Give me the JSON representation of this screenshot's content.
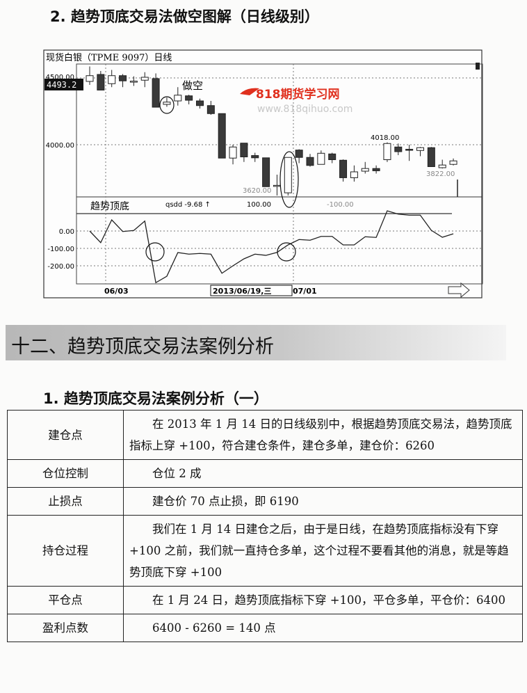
{
  "figure_title": "2. 趋势顶底交易法做空图解（日线级别）",
  "chart_header": "现货白银（TPME 9097）日线",
  "current_price_badge": "4493.2",
  "price_axis_labels": [
    "4500.00",
    "4000.00"
  ],
  "indicator_axis_labels": [
    "0.00",
    "-100.00",
    "-200.00"
  ],
  "indicator_name": "趋势顶底",
  "indicator_readout": "qsdd  -9.68 ↑",
  "indicator_level_high": "100.00",
  "indicator_level_low": "-100.00",
  "annotation_short": "做空",
  "price_labels": {
    "high": "4018.00",
    "low1": "3620.00",
    "low2": "3822.00"
  },
  "date_labels": [
    "06/03",
    "2013/06/19,三",
    "07/01"
  ],
  "watermark": {
    "name": "818期货学习网",
    "url": "www.818qihuo.com",
    "color": "#e0301e"
  },
  "section_title": "十二、趋势顶底交易法案例分析",
  "sub_title": "1. 趋势顶底交易法案例分析（一）",
  "table": [
    {
      "label": "建仓点",
      "value": "在 2013 年 1 月 14 日的日线级别中，根据趋势顶底交易法，趋势顶底指标上穿 +100，符合建仓条件，建仓多单，建仓价：6260",
      "indent": true
    },
    {
      "label": "仓位控制",
      "value": "仓位 2 成",
      "indent": true
    },
    {
      "label": "止损点",
      "value": "建仓价 70 点止损，即 6190",
      "indent": true
    },
    {
      "label": "持仓过程",
      "value": "我们在 1 月 14 日建仓之后，由于是日线，在趋势顶底指标没有下穿 +100 之前，我们就一直持仓多单，这个过程不要看其他的消息，就是等趋势顶底下穿 +100",
      "indent": true
    },
    {
      "label": "平仓点",
      "value": "在 1 月 24 日，趋势顶底指标下穿 +100，平仓多单，平仓价：6400",
      "indent": true
    },
    {
      "label": "盈利点数",
      "value": "6400 - 6260 = 140 点",
      "indent": true
    }
  ],
  "chart_data": {
    "type": "candlestick",
    "ylim": [
      3609,
      4600
    ],
    "ohlc": [
      [
        4474,
        4586,
        4448,
        4517
      ],
      [
        4526,
        4552,
        4409,
        4409
      ],
      [
        4457,
        4560,
        4431,
        4517
      ],
      [
        4517,
        4529,
        4431,
        4478
      ],
      [
        4474,
        4512,
        4440,
        4476
      ],
      [
        4483,
        4543,
        4431,
        4505
      ],
      [
        4495,
        4534,
        4281,
        4281
      ],
      [
        4302,
        4353,
        4284,
        4319
      ],
      [
        4328,
        4431,
        4293,
        4371
      ],
      [
        4366,
        4374,
        4302,
        4333
      ],
      [
        4328,
        4345,
        4271,
        4293
      ],
      [
        4293,
        4328,
        4224,
        4233
      ],
      [
        4233,
        4233,
        3900,
        3900
      ],
      [
        3900,
        4000,
        3853,
        3983
      ],
      [
        4012,
        4012,
        3871,
        3909
      ],
      [
        3919,
        3940,
        3871,
        3902
      ],
      [
        3902,
        3902,
        3686,
        3686
      ],
      [
        3693,
        3776,
        3620,
        3696
      ],
      [
        3640,
        3905,
        3620,
        3905
      ],
      [
        3960,
        3966,
        3862,
        3905
      ],
      [
        3905,
        3931,
        3836,
        3845
      ],
      [
        3853,
        3957,
        3853,
        3936
      ],
      [
        3931,
        3940,
        3862,
        3888
      ],
      [
        3884,
        3890,
        3724,
        3753
      ],
      [
        3753,
        3845,
        3724,
        3797
      ],
      [
        3802,
        3871,
        3784,
        3822
      ],
      [
        3822,
        3845,
        3784,
        3805
      ],
      [
        3888,
        4018,
        3871,
        4009
      ],
      [
        3983,
        4009,
        3922,
        3948
      ],
      [
        3966,
        4000,
        3879,
        3960
      ],
      [
        3957,
        3983,
        3914,
        3978
      ],
      [
        3978,
        3983,
        3836,
        3836
      ],
      [
        3828,
        3888,
        3822,
        3848
      ],
      [
        3853,
        3897,
        3845,
        3879
      ]
    ],
    "indicator": {
      "name": "趋势顶底",
      "levels": [
        100,
        -100
      ],
      "ylim": [
        -300,
        110
      ],
      "values": [
        0,
        -67,
        64,
        -3,
        3,
        57,
        -297,
        -260,
        -124,
        -133,
        -129,
        -133,
        -243,
        -200,
        -160,
        -133,
        -140,
        -123,
        -80,
        -49,
        -53,
        -31,
        -31,
        -80,
        -80,
        -33,
        -37,
        116,
        97,
        91,
        91,
        4,
        -36,
        -16
      ]
    },
    "up_color": "#ffffff",
    "down_color": "#3a3a3a"
  }
}
